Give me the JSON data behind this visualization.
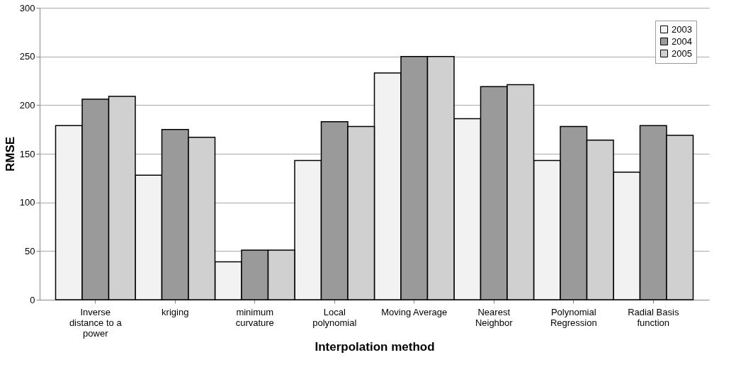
{
  "chart_data": {
    "type": "bar",
    "xlabel": "Interpolation method",
    "ylabel": "RMSE",
    "categories": [
      "Inverse distance to a power",
      "kriging",
      "minimum curvature",
      "Local polynomial",
      "Moving Average",
      "Nearest Neighbor",
      "Polynomial Regression",
      "Radial Basis function"
    ],
    "series": [
      {
        "name": "2003",
        "color": "#f2f2f2",
        "values": [
          179,
          128,
          39,
          143,
          233,
          186,
          143,
          131
        ]
      },
      {
        "name": "2004",
        "color": "#9a9a9a",
        "values": [
          206,
          175,
          51,
          183,
          250,
          219,
          178,
          179
        ]
      },
      {
        "name": "2005",
        "color": "#d0d0d0",
        "values": [
          209,
          167,
          51,
          178,
          250,
          221,
          164,
          169
        ]
      }
    ],
    "ylim": [
      0,
      300
    ],
    "yticks": [
      0,
      50,
      100,
      150,
      200,
      250,
      300
    ],
    "grid": "y",
    "legend": "top right"
  }
}
